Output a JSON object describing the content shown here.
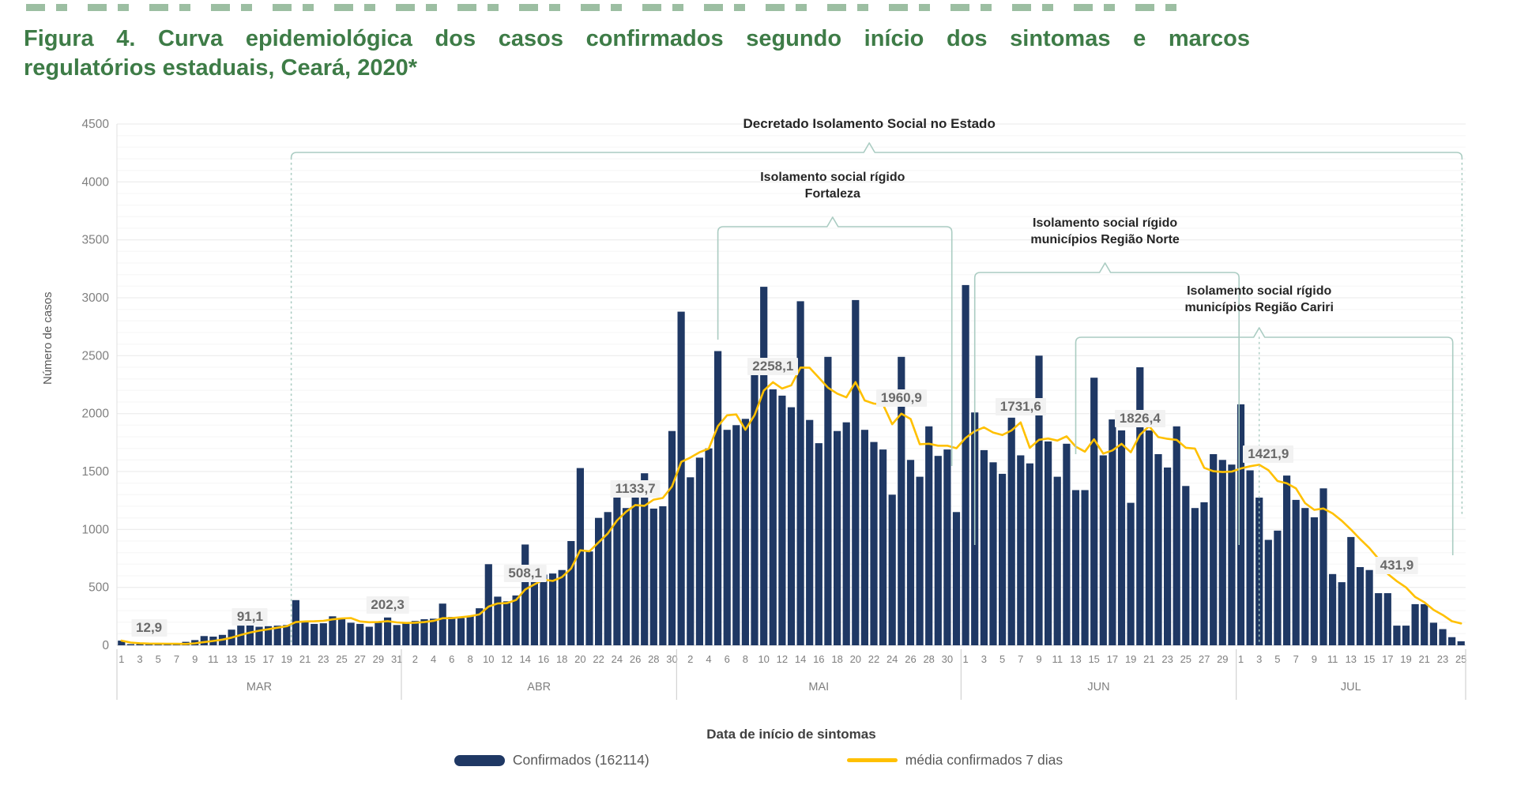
{
  "figure_title": {
    "line1": "Figura 4. Curva epidemiológica dos casos confirmados segundo início dos sintomas e marcos",
    "line2": "regulatórios estaduais, Ceará, 2020*",
    "color": "#3E7C47"
  },
  "chart_data": {
    "type": "bar",
    "title": "Figura 4. Curva epidemiológica dos casos confirmados segundo início dos sintomas e marcos regulatórios estaduais, Ceará, 2020*",
    "xlabel": "Data de início de sintomas",
    "ylabel": "Número de casos",
    "ylim": [
      0,
      4500
    ],
    "y_tick_step": 500,
    "grid": "horizontal minor every 100, major every 500",
    "legend_position": "bottom",
    "months": [
      {
        "name": "MAR",
        "days": 31,
        "first_tick": 1
      },
      {
        "name": "ABR",
        "days": 30,
        "first_tick": 2
      },
      {
        "name": "MAI",
        "days": 31,
        "first_tick": 2
      },
      {
        "name": "JUN",
        "days": 30,
        "first_tick": 1
      },
      {
        "name": "JUL",
        "days": 25,
        "first_tick": 1
      }
    ],
    "series": [
      {
        "name": "Confirmados (162114)",
        "type": "bar",
        "color": "#1F3864",
        "values": [
          40,
          8,
          5,
          8,
          10,
          12,
          10,
          30,
          45,
          80,
          75,
          90,
          135,
          170,
          175,
          160,
          165,
          170,
          175,
          390,
          205,
          185,
          190,
          250,
          230,
          195,
          185,
          160,
          200,
          240,
          175,
          195,
          210,
          225,
          230,
          360,
          245,
          235,
          250,
          320,
          700,
          420,
          380,
          430,
          870,
          560,
          610,
          620,
          650,
          900,
          1530,
          810,
          1100,
          1150,
          1400,
          1185,
          1300,
          1485,
          1180,
          1200,
          1850,
          2880,
          1450,
          1620,
          1700,
          2540,
          1860,
          1900,
          1955,
          2340,
          3095,
          2210,
          2155,
          2055,
          2970,
          1945,
          1745,
          2490,
          1850,
          1925,
          2980,
          1860,
          1755,
          1690,
          1300,
          2490,
          1600,
          1455,
          1890,
          1635,
          1690,
          1150,
          3110,
          2010,
          1685,
          1580,
          1480,
          1965,
          1640,
          1570,
          2500,
          1760,
          1455,
          1740,
          1340,
          1340,
          2310,
          1640,
          1950,
          1855,
          1230,
          2400,
          1855,
          1650,
          1535,
          1890,
          1375,
          1185,
          1235,
          1650,
          1600,
          1560,
          2080,
          1510,
          1275,
          910,
          990,
          1465,
          1255,
          1185,
          1105,
          1355,
          615,
          545,
          935,
          675,
          650,
          450,
          450,
          170,
          170,
          355,
          355,
          195,
          140,
          70,
          35
        ]
      },
      {
        "name": "média confirmados 7 dias",
        "type": "line",
        "color": "#FFC000",
        "definition": "7-day moving average of Confirmados"
      }
    ],
    "point_labels": [
      {
        "day_index": 3,
        "text": "12,9"
      },
      {
        "day_index": 14,
        "text": "91,1"
      },
      {
        "day_index": 29,
        "text": "202,3"
      },
      {
        "day_index": 44,
        "text": "508,1"
      },
      {
        "day_index": 56,
        "text": "1133,7"
      },
      {
        "day_index": 71,
        "text": "2258,1"
      },
      {
        "day_index": 85,
        "text": "1960,9"
      },
      {
        "day_index": 98,
        "text": "1731,6"
      },
      {
        "day_index": 111,
        "text": "1826,4"
      },
      {
        "day_index": 125,
        "text": "1421,9"
      },
      {
        "day_index": 139,
        "text": "431,9"
      }
    ],
    "annotations": [
      {
        "line1": "Decretado Isolamento Social no Estado",
        "line2": "",
        "start_day": 19,
        "end_day": 146.6,
        "bracket_y": 193,
        "label_y": 146,
        "notch_day": 82,
        "left_drop_to": 815,
        "right_drop_to": 650,
        "drop_style": "dashed"
      },
      {
        "line1": "Isolamento social rígido",
        "line2": "Fortaleza",
        "start_day": 65.5,
        "end_day": 91,
        "bracket_y": 287,
        "label_y": 214,
        "notch_day": 78,
        "left_drop_to": 430,
        "right_drop_to": 590,
        "drop_style": "solid"
      },
      {
        "line1": "Isolamento social rígido",
        "line2": "municípios Região Norte",
        "start_day": 93.5,
        "end_day": 122.3,
        "bracket_y": 345,
        "label_y": 272,
        "notch_day": 107.7,
        "left_drop_to": 690,
        "right_drop_to": 690,
        "drop_style": "solid"
      },
      {
        "line1": "Isolamento social rígido",
        "line2": "municípios Região Cariri",
        "start_day": 104.5,
        "end_day": 145.6,
        "bracket_y": 427,
        "label_y": 358,
        "notch_day": 124.5,
        "left_drop_to": 575,
        "right_drop_to": 703,
        "drop_style": "solid",
        "center_drop_to": 815
      }
    ],
    "bracket_color": "#AACCC2"
  },
  "legend": {
    "items": [
      {
        "label": "Confirmados (162114)",
        "swatch": "bar",
        "color": "#1F3864"
      },
      {
        "label": "média confirmados 7 dias",
        "swatch": "line",
        "color": "#FFC000"
      }
    ]
  }
}
